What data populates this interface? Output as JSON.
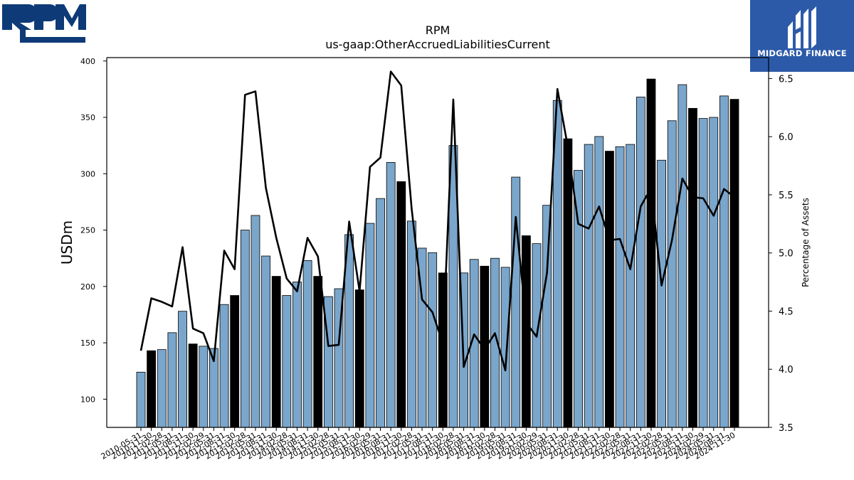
{
  "header": {
    "title": "RPM",
    "subtitle": "us-gaap:OtherAccruedLiabilitiesCurrent"
  },
  "logos": {
    "left_text": "RPM",
    "right_text": "MIDGARD FINANCE",
    "left_color": "#0e3a77",
    "right_bg": "#2c5aa8"
  },
  "chart_data": {
    "type": "bar",
    "title": "RPM",
    "subtitle": "us-gaap:OtherAccruedLiabilitiesCurrent",
    "ylabel": "USDm",
    "y2label": "Percentage of Assets",
    "ylim": [
      75,
      403
    ],
    "y2lim": [
      3.5,
      6.68
    ],
    "yticks": [
      100,
      150,
      200,
      250,
      300,
      350,
      400
    ],
    "y2ticks": [
      3.5,
      4.0,
      4.5,
      5.0,
      5.5,
      6.0,
      6.5
    ],
    "colors": {
      "bar": "#7aa6cc",
      "bar_highlight": "#000000",
      "line": "#000000"
    },
    "categories": [
      "2010-05-31",
      "2010-11-30",
      "2011-02-28",
      "2011-05-31",
      "2011-08-31",
      "2011-11-30",
      "2012-02-29",
      "2012-05-31",
      "2012-08-31",
      "2012-11-30",
      "2013-02-28",
      "2013-05-31",
      "2013-08-31",
      "2013-11-30",
      "2014-02-28",
      "2014-05-31",
      "2014-08-31",
      "2014-11-30",
      "2015-02-28",
      "2015-05-31",
      "2015-08-31",
      "2015-11-30",
      "2016-02-29",
      "2016-05-31",
      "2016-08-31",
      "2016-11-30",
      "2017-02-28",
      "2017-05-31",
      "2017-08-31",
      "2017-11-30",
      "2018-02-28",
      "2018-05-31",
      "2018-08-31",
      "2018-11-30",
      "2019-02-28",
      "2019-05-31",
      "2019-08-31",
      "2019-11-30",
      "2020-02-29",
      "2020-05-31",
      "2020-08-31",
      "2020-11-30",
      "2021-02-28",
      "2021-05-31",
      "2021-08-31",
      "2021-11-30",
      "2022-02-28",
      "2022-05-31",
      "2022-08-31",
      "2022-11-30",
      "2023-02-28",
      "2023-05-31",
      "2023-08-31",
      "2023-11-30",
      "2024-02-29",
      "2024-05-31",
      "2024-08-31",
      "2024-11-30"
    ],
    "series": [
      {
        "type": "bar",
        "axis": "left",
        "values": [
          124,
          143,
          144,
          159,
          178,
          149,
          147,
          145,
          184,
          192,
          250,
          263,
          227,
          209,
          192,
          204,
          223,
          209,
          191,
          198,
          246,
          197,
          256,
          278,
          310,
          293,
          258,
          234,
          230,
          212,
          325,
          212,
          224,
          218,
          225,
          217,
          297,
          245,
          238,
          272,
          365,
          331,
          303,
          326,
          333,
          320,
          324,
          326,
          368,
          384,
          312,
          347,
          379,
          358,
          349,
          350,
          369,
          366
        ],
        "highlight": [
          false,
          true,
          false,
          false,
          false,
          true,
          false,
          false,
          false,
          true,
          false,
          false,
          false,
          true,
          false,
          false,
          false,
          true,
          false,
          false,
          false,
          true,
          false,
          false,
          false,
          true,
          false,
          false,
          false,
          true,
          false,
          false,
          false,
          true,
          false,
          false,
          false,
          true,
          false,
          false,
          false,
          true,
          false,
          false,
          false,
          true,
          false,
          false,
          false,
          true,
          false,
          false,
          false,
          true,
          false,
          false,
          false,
          true
        ]
      },
      {
        "type": "line",
        "axis": "right",
        "values": [
          4.16,
          4.61,
          4.58,
          4.54,
          5.05,
          4.35,
          4.31,
          4.07,
          5.02,
          4.86,
          6.36,
          6.39,
          5.56,
          5.13,
          4.78,
          4.67,
          5.13,
          4.97,
          4.2,
          4.21,
          5.27,
          4.67,
          5.74,
          5.82,
          6.56,
          6.44,
          5.38,
          4.6,
          4.49,
          4.22,
          6.32,
          4.02,
          4.3,
          4.17,
          4.31,
          3.99,
          5.31,
          4.4,
          4.28,
          4.83,
          6.41,
          5.91,
          5.25,
          5.21,
          5.4,
          5.11,
          5.12,
          4.86,
          5.4,
          5.56,
          4.72,
          5.11,
          5.64,
          5.48,
          5.47,
          5.32,
          5.55,
          5.48
        ]
      }
    ]
  }
}
